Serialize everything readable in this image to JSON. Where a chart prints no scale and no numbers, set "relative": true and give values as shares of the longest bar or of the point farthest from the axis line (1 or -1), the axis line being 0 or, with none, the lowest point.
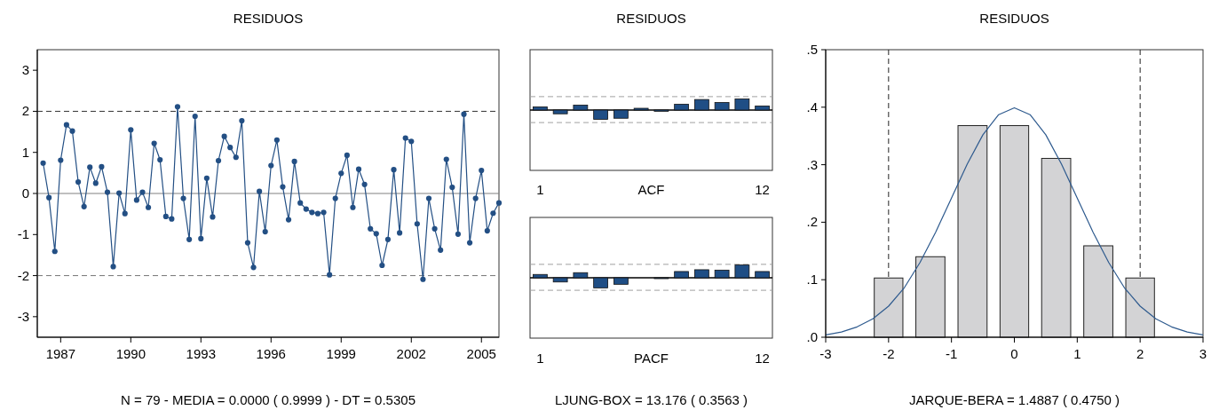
{
  "chart_data": [
    {
      "type": "line",
      "title": "RESIDUOS",
      "color": "#234f84",
      "marker": "circle",
      "x": [
        1986.25,
        1986.5,
        1986.75,
        1987,
        1987.25,
        1987.5,
        1987.75,
        1988,
        1988.25,
        1988.5,
        1988.75,
        1989,
        1989.25,
        1989.5,
        1989.75,
        1990,
        1990.25,
        1990.5,
        1990.75,
        1991,
        1991.25,
        1991.5,
        1991.75,
        1992,
        1992.25,
        1992.5,
        1992.75,
        1993,
        1993.25,
        1993.5,
        1993.75,
        1994,
        1994.25,
        1994.5,
        1994.75,
        1995,
        1995.25,
        1995.5,
        1995.75,
        1996,
        1996.25,
        1996.5,
        1996.75,
        1997,
        1997.25,
        1997.5,
        1997.75,
        1998,
        1998.25,
        1998.5,
        1998.75,
        1999,
        1999.25,
        1999.5,
        1999.75,
        2000,
        2000.25,
        2000.5,
        2000.75,
        2001,
        2001.25,
        2001.5,
        2001.75,
        2002,
        2002.25,
        2002.5,
        2002.75,
        2003,
        2003.25,
        2003.5,
        2003.75,
        2004,
        2004.25,
        2004.5,
        2004.75,
        2005,
        2005.25,
        2005.5,
        2005.75
      ],
      "values": [
        0.74,
        -0.1,
        -1.41,
        0.81,
        1.67,
        1.52,
        0.28,
        -0.32,
        0.64,
        0.25,
        0.65,
        0.03,
        -1.78,
        0.01,
        -0.49,
        1.55,
        -0.16,
        0.03,
        -0.34,
        1.22,
        0.82,
        -0.56,
        -0.62,
        2.11,
        -0.12,
        -1.12,
        1.88,
        -1.1,
        0.37,
        -0.57,
        0.8,
        1.39,
        1.12,
        0.88,
        1.77,
        -1.2,
        -1.8,
        0.05,
        -0.93,
        0.68,
        1.3,
        0.16,
        -0.64,
        0.78,
        -0.23,
        -0.38,
        -0.46,
        -0.49,
        -0.46,
        -1.98,
        -0.12,
        0.49,
        0.93,
        -0.34,
        0.59,
        0.22,
        -0.86,
        -0.98,
        -1.75,
        -1.12,
        0.58,
        -0.96,
        1.35,
        1.27,
        -0.74,
        -2.09,
        -0.12,
        -0.86,
        -1.38,
        0.83,
        0.15,
        -0.99,
        1.93,
        -1.2,
        -0.12,
        0.56,
        -0.91,
        -0.48,
        -0.23
      ],
      "xlim": [
        1986,
        2005.75
      ],
      "xticks": [
        1987,
        1990,
        1993,
        1996,
        1999,
        2002,
        2005
      ],
      "ylim": [
        -3.5,
        3.5
      ],
      "yticks": [
        -3,
        -2,
        -1,
        0,
        1,
        2,
        3
      ],
      "ref_lines": [
        {
          "axis": "y",
          "value": 2,
          "line_style": "dashed",
          "color": "#333333"
        },
        {
          "axis": "y",
          "value": -2,
          "line_style": "dashed",
          "color": "#777777"
        },
        {
          "axis": "y",
          "value": 0,
          "line_style": "solid",
          "color": "#808080"
        }
      ],
      "annotations": [
        "N = 79  -  MEDIA = 0.0000 ( 0.9999 )  -  DT = 0.5305"
      ]
    },
    {
      "type": "bar",
      "title": "RESIDUOS",
      "xlabel": "ACF",
      "relative": true,
      "color": "#1f4e85",
      "categories": [
        "1",
        null,
        null,
        null,
        null,
        null,
        null,
        null,
        null,
        null,
        null,
        "12"
      ],
      "values": [
        0.29,
        -0.34,
        0.45,
        -0.84,
        -0.74,
        0.16,
        -0.11,
        0.53,
        0.95,
        0.68,
        1,
        0.37
      ],
      "ref_lines": [
        {
          "axis": "y",
          "value": 1.21,
          "line_style": "dashed",
          "color": "#a0a0a0"
        },
        {
          "axis": "y",
          "value": -1.13,
          "line_style": "dashed",
          "color": "#a0a0a0"
        }
      ]
    },
    {
      "type": "bar",
      "xlabel": "PACF",
      "relative": true,
      "color": "#1f4e85",
      "categories": [
        "1",
        null,
        null,
        null,
        null,
        null,
        null,
        null,
        null,
        null,
        null,
        "12"
      ],
      "values": [
        0.26,
        -0.33,
        0.4,
        -0.79,
        -0.51,
        0,
        -0.07,
        0.49,
        0.63,
        0.6,
        1,
        0.49
      ],
      "ref_lines": [
        {
          "axis": "y",
          "value": 1.05,
          "line_style": "dashed",
          "color": "#a0a0a0"
        },
        {
          "axis": "y",
          "value": -0.98,
          "line_style": "dashed",
          "color": "#a0a0a0"
        }
      ],
      "annotations": [
        "LJUNG-BOX = 13.176 ( 0.3563 )"
      ]
    },
    {
      "type": "histogram",
      "title": "RESIDUOS",
      "color": "#d3d3d5",
      "bins": [
        -2.33,
        -1.67,
        -1,
        -0.33,
        0.33,
        1,
        1.67,
        2.33
      ],
      "values": [
        0.103,
        0.14,
        0.368,
        0.368,
        0.311,
        0.159,
        0.103
      ],
      "series": [
        {
          "type": "line",
          "color": "#2e5a8e",
          "x": [
            -3,
            -2.75,
            -2.5,
            -2.25,
            -2,
            -1.75,
            -1.5,
            -1.25,
            -1,
            -0.75,
            -0.5,
            -0.25,
            0,
            0.25,
            0.5,
            0.75,
            1,
            1.25,
            1.5,
            1.75,
            2,
            2.25,
            2.5,
            2.75,
            3
          ],
          "values": [
            0.004,
            0.009,
            0.018,
            0.032,
            0.054,
            0.086,
            0.13,
            0.183,
            0.242,
            0.301,
            0.352,
            0.387,
            0.399,
            0.387,
            0.352,
            0.301,
            0.242,
            0.183,
            0.13,
            0.086,
            0.054,
            0.032,
            0.018,
            0.009,
            0.004
          ]
        }
      ],
      "xlim": [
        -3,
        3
      ],
      "xticks": [
        -3,
        -2,
        -1,
        0,
        1,
        2,
        3
      ],
      "ylim": [
        0,
        0.5
      ],
      "yticks": [
        {
          "value": 0,
          "label": ".0"
        },
        {
          "value": 0.1,
          "label": ".1"
        },
        {
          "value": 0.2,
          "label": ".2"
        },
        {
          "value": 0.3,
          "label": ".3"
        },
        {
          "value": 0.4,
          "label": ".4"
        },
        {
          "value": 0.5,
          "label": ".5"
        }
      ],
      "ref_lines": [
        {
          "axis": "x",
          "value": -2,
          "line_style": "dashed",
          "color": "#222222"
        },
        {
          "axis": "x",
          "value": 2,
          "line_style": "dashed",
          "color": "#222222"
        }
      ],
      "annotations": [
        "JARQUE-BERA = 1.4887  ( 0.4750 )"
      ]
    }
  ]
}
